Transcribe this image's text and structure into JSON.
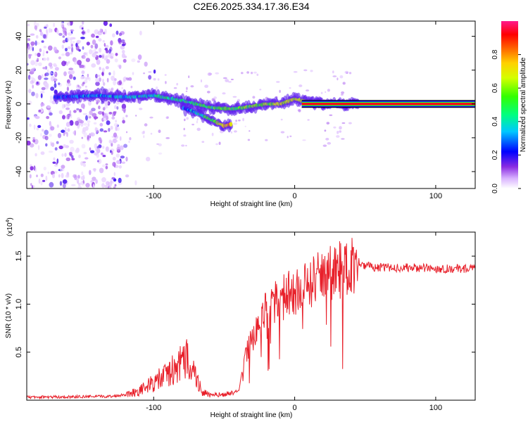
{
  "title": "C2E6.2025.334.17.36.E34",
  "chart_data": [
    {
      "type": "heatmap",
      "name": "spectrogram",
      "xlabel": "Height of straight line (km)",
      "ylabel": "Frequency (Hz)",
      "xlim": [
        -190,
        128
      ],
      "ylim": [
        -50,
        49
      ],
      "xticks": [
        -100,
        0,
        100
      ],
      "yticks": [
        -40,
        -20,
        0,
        20,
        40
      ],
      "colorbar": {
        "label": "Normalized spectral amplitude",
        "range": [
          0,
          1
        ],
        "ticks": [
          0.0,
          0.2,
          0.4,
          0.6,
          0.8
        ]
      },
      "tracks": [
        {
          "name": "upper",
          "x": [
            -170,
            -140,
            -120,
            -100,
            -80,
            -60,
            -45,
            -35,
            -20,
            -10,
            0,
            5,
            20,
            40,
            128
          ],
          "y": [
            4,
            5,
            4,
            5,
            2,
            -2,
            -3,
            -2,
            0,
            0,
            3,
            2,
            0,
            0,
            0
          ]
        },
        {
          "name": "lower",
          "x": [
            -80,
            -70,
            -60,
            -50,
            -45
          ],
          "y": [
            -2,
            -5,
            -9,
            -13,
            -12
          ]
        }
      ],
      "noise_region_x": [
        -190,
        -120
      ]
    },
    {
      "type": "line",
      "name": "snr",
      "xlabel": "Height of straight line (km)",
      "ylabel": "SNR (10 * v/v)",
      "multiplier": "(x10",
      "multiplier_exp": "4",
      "xlim": [
        -190,
        128
      ],
      "ylim": [
        0,
        17500
      ],
      "xticks": [
        -100,
        0,
        100
      ],
      "yticks": [
        5000,
        10000,
        15000
      ],
      "ytick_labels": [
        "0.5",
        "1.0",
        "1.5"
      ],
      "color": "#e8202a",
      "envelope_x": [
        -190,
        -130,
        -120,
        -110,
        -100,
        -90,
        -80,
        -75,
        -70,
        -65,
        -60,
        -50,
        -40,
        -35,
        -30,
        -25,
        -20,
        -15,
        -10,
        -5,
        0,
        5,
        10,
        20,
        30,
        40,
        45,
        50,
        60,
        80,
        100,
        128
      ],
      "envelope_y": [
        300,
        400,
        600,
        1000,
        1800,
        2700,
        3800,
        4500,
        2300,
        800,
        500,
        600,
        900,
        4500,
        6500,
        8000,
        9500,
        10000,
        10500,
        11000,
        11000,
        11500,
        12000,
        13000,
        13500,
        14000,
        14500,
        14000,
        13800,
        13800,
        13700,
        13700
      ]
    }
  ]
}
